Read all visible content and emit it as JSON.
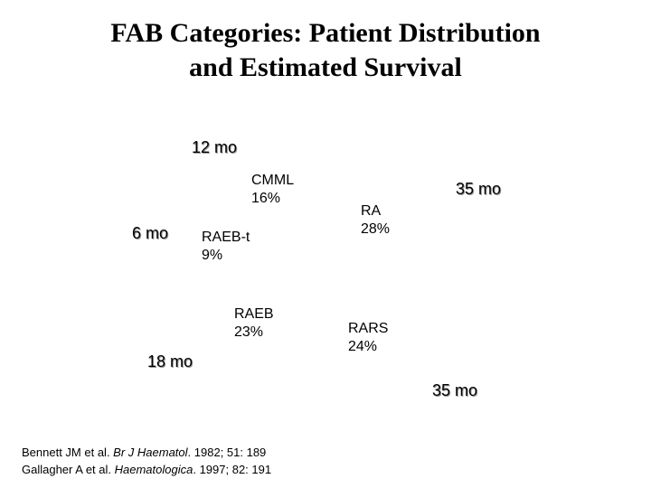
{
  "title": {
    "line1": "FAB Categories: Patient Distribution",
    "line2": "and Estimated Survival"
  },
  "chart_data": {
    "type": "pie",
    "slices": [
      {
        "category": "CMML",
        "percent_label": "16%",
        "value": 16,
        "survival": "12 mo"
      },
      {
        "category": "RA",
        "percent_label": "28%",
        "value": 28,
        "survival": "35 mo"
      },
      {
        "category": "RARS",
        "percent_label": "24%",
        "value": 24,
        "survival": "35 mo"
      },
      {
        "category": "RAEB",
        "percent_label": "23%",
        "value": 23,
        "survival": "18 mo"
      },
      {
        "category": "RAEB-t",
        "percent_label": "9%",
        "value": 9,
        "survival": "6 mo"
      }
    ]
  },
  "references": {
    "ref1": {
      "authors": "Bennett JM et al. ",
      "journal": "Br J Haematol",
      "details": ". 1982; 51: 189"
    },
    "ref2": {
      "authors": "Gallagher A et al. ",
      "journal": "Haematologica",
      "details": ". 1997; 82: 191"
    }
  }
}
